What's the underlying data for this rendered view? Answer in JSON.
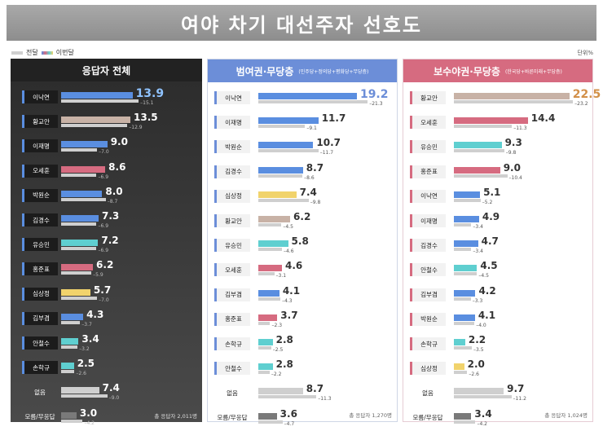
{
  "title": "여야 차기 대선주자 선호도",
  "legend": {
    "prev_label": "전달",
    "cur_label": "이번달"
  },
  "unit": "단위%",
  "colors": {
    "이낙연": "#5a8ee0",
    "이재명": "#5a8ee0",
    "박원순": "#5a8ee0",
    "김경수": "#5a8ee0",
    "김부겸": "#5a8ee0",
    "황교안": "#c8b2a6",
    "오세훈": "#d66b80",
    "홍준표": "#d66b80",
    "유승민": "#5fcfd0",
    "안철수": "#5fcfd0",
    "손학규": "#5fcfd0",
    "심상정": "#f1d36c",
    "없음": "#cfcfcf",
    "모름/무응답": "#7a7a7a"
  },
  "chart_data": [
    {
      "type": "bar",
      "title": "응답자 전체",
      "subtitle": "",
      "total": "총 응답자 2,011명",
      "categories": [
        "이낙연",
        "황교안",
        "이재명",
        "오세훈",
        "박원순",
        "김경수",
        "유승민",
        "홍준표",
        "심상정",
        "김부겸",
        "안철수",
        "손학규",
        "없음",
        "모름/무응답"
      ],
      "series": [
        {
          "name": "이번달",
          "values": [
            13.9,
            13.5,
            9.0,
            8.6,
            8.0,
            7.3,
            7.2,
            6.2,
            5.7,
            4.3,
            3.4,
            2.5,
            7.4,
            3.0
          ]
        },
        {
          "name": "전달",
          "values": [
            15.1,
            12.9,
            7.0,
            6.9,
            8.7,
            6.9,
            6.9,
            5.9,
            7.0,
            3.7,
            3.2,
            2.6,
            9.0,
            4.2
          ]
        }
      ],
      "xlim": [
        0,
        25
      ]
    },
    {
      "type": "bar",
      "title": "범여권·무당층",
      "subtitle": "(민주당+정의당+평화당+무당층)",
      "total": "총 응답자 1,270명",
      "categories": [
        "이낙연",
        "이재명",
        "박원순",
        "김경수",
        "심상정",
        "황교안",
        "유승민",
        "오세훈",
        "김부겸",
        "홍준표",
        "손학규",
        "안철수",
        "없음",
        "모름/무응답"
      ],
      "series": [
        {
          "name": "이번달",
          "values": [
            19.2,
            11.7,
            10.7,
            8.7,
            7.4,
            6.2,
            5.8,
            4.6,
            4.1,
            3.7,
            2.8,
            2.8,
            8.7,
            3.6
          ]
        },
        {
          "name": "전달",
          "values": [
            21.3,
            9.1,
            11.7,
            8.6,
            9.8,
            4.5,
            4.6,
            3.1,
            4.3,
            2.3,
            2.5,
            2.2,
            11.3,
            4.7
          ]
        }
      ],
      "xlim": [
        0,
        25
      ]
    },
    {
      "type": "bar",
      "title": "보수야권·무당층",
      "subtitle": "(한국당+바른미래+무당층)",
      "total": "총 응답자 1,024명",
      "categories": [
        "황교안",
        "오세훈",
        "유승민",
        "홍준표",
        "이낙연",
        "이재명",
        "김경수",
        "안철수",
        "김부겸",
        "박원순",
        "손학규",
        "심상정",
        "없음",
        "모름/무응답"
      ],
      "series": [
        {
          "name": "이번달",
          "values": [
            22.5,
            14.4,
            9.3,
            9.0,
            5.1,
            4.9,
            4.7,
            4.5,
            4.2,
            4.1,
            2.2,
            2.0,
            9.7,
            3.4
          ]
        },
        {
          "name": "전달",
          "values": [
            23.2,
            11.3,
            9.8,
            10.4,
            5.2,
            3.4,
            3.4,
            4.5,
            3.3,
            4.0,
            3.5,
            2.6,
            11.2,
            4.2
          ]
        }
      ],
      "xlim": [
        0,
        25
      ]
    }
  ]
}
